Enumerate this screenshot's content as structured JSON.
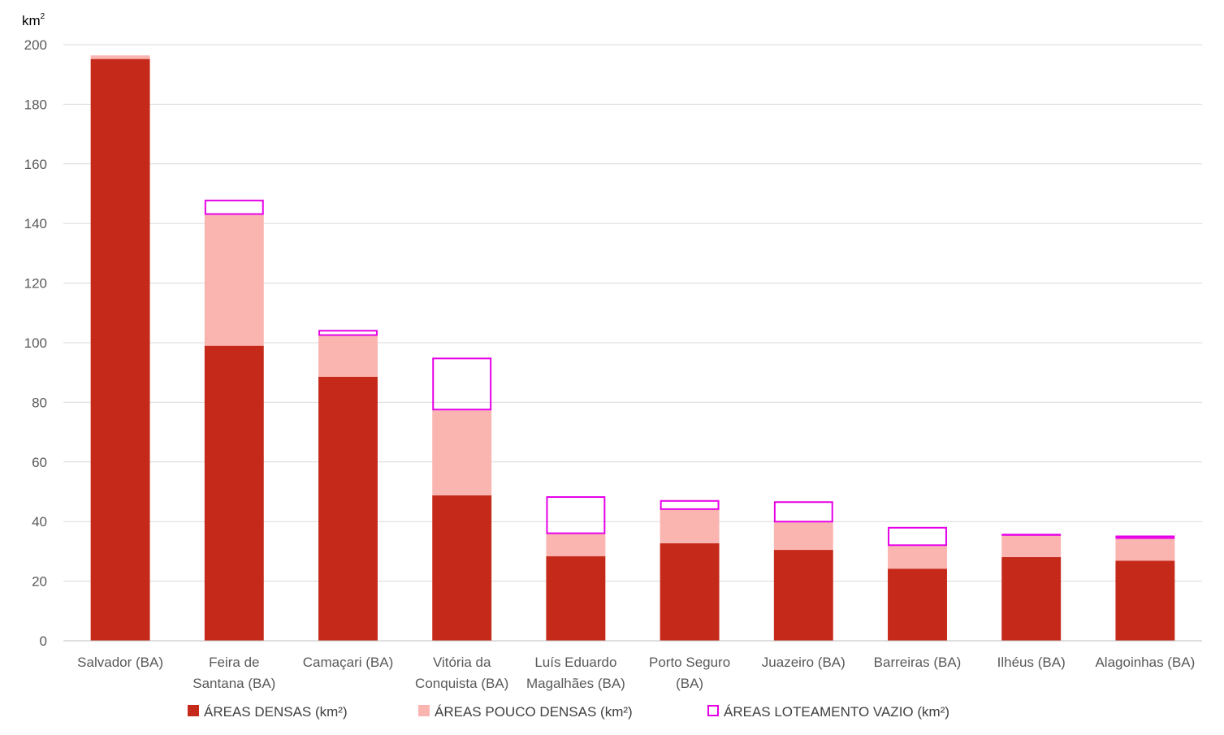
{
  "chart_data": {
    "type": "bar",
    "stacked": true,
    "y_unit_label": "km",
    "y_unit_superscript": "2",
    "ylim": [
      0,
      200
    ],
    "yticks": [
      0,
      20,
      40,
      60,
      80,
      100,
      120,
      140,
      160,
      180,
      200
    ],
    "grid": true,
    "legend_position": "bottom",
    "categories": [
      [
        "Salvador (BA)"
      ],
      [
        "Feira de",
        "Santana (BA)"
      ],
      [
        "Camaçari (BA)"
      ],
      [
        "Vitória da",
        "Conquista (BA)"
      ],
      [
        "Luís Eduardo",
        "Magalhães (BA)"
      ],
      [
        "Porto Seguro",
        "(BA)"
      ],
      [
        "Juazeiro (BA)"
      ],
      [
        "Barreiras (BA)"
      ],
      [
        "Ilhéus (BA)"
      ],
      [
        "Alagoinhas (BA)"
      ]
    ],
    "series": [
      {
        "name": "ÁREAS DENSAS (km²)",
        "style": "filled",
        "color": "#C5291A",
        "values": [
          195.2,
          99.0,
          88.6,
          48.8,
          28.4,
          32.7,
          30.5,
          24.2,
          28.1,
          26.9
        ]
      },
      {
        "name": "ÁREAS POUCO DENSAS (km²)",
        "style": "filled",
        "color": "#FBB5B1",
        "values": [
          1.2,
          43.9,
          13.7,
          28.5,
          7.4,
          11.2,
          9.2,
          7.6,
          7.2,
          7.3
        ]
      },
      {
        "name": "ÁREAS LOTEAMENTO VAZIO (km²)",
        "style": "outline",
        "color": "#E600E6",
        "values": [
          0.0,
          5.1,
          2.0,
          17.7,
          12.7,
          3.3,
          7.1,
          6.4,
          0.6,
          1.1
        ]
      }
    ]
  }
}
